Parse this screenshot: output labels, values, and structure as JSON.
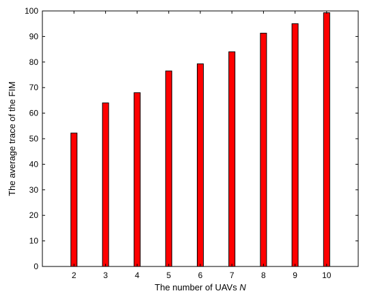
{
  "chart_data": {
    "type": "bar",
    "categories": [
      "2",
      "3",
      "4",
      "5",
      "6",
      "7",
      "8",
      "9",
      "10"
    ],
    "values": [
      52.2,
      64.0,
      68.0,
      76.5,
      79.3,
      84.0,
      91.3,
      95.0,
      99.3
    ],
    "xlabel_text": "The number of UAVs ",
    "xlabel_var": "N",
    "ylabel": "The average trace of the FIM",
    "ylim": [
      0,
      100
    ],
    "yticks": [
      0,
      10,
      20,
      30,
      40,
      50,
      60,
      70,
      80,
      90,
      100
    ],
    "grid": false,
    "legend": "none",
    "bar_color": "#ff0000",
    "bar_edge_color": "#000000"
  }
}
